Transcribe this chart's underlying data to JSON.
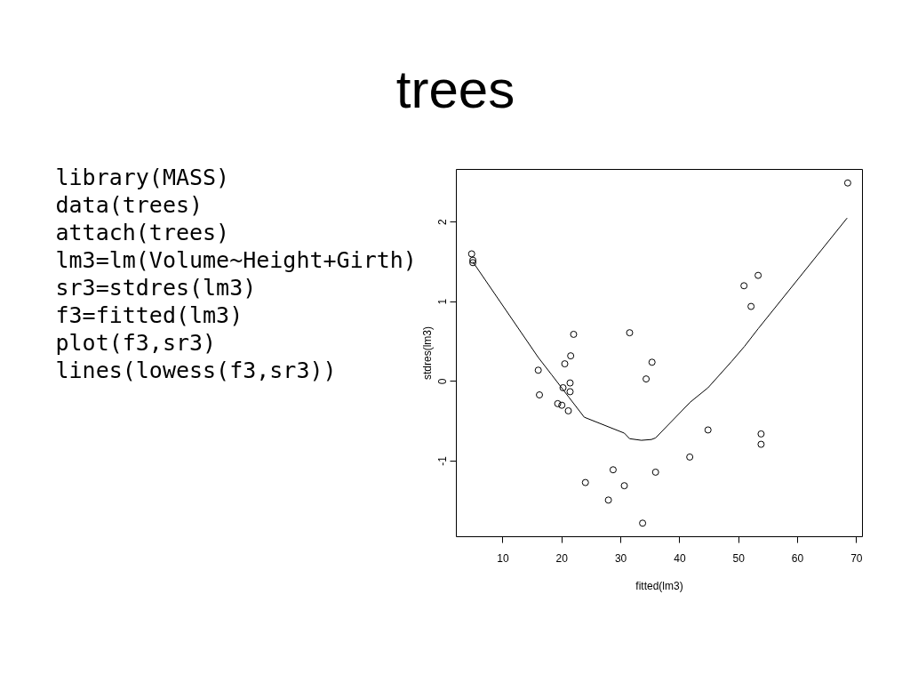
{
  "chart_data": {
    "type": "scatter",
    "title": "trees",
    "xlabel": "fitted(lm3)",
    "ylabel": "stdres(lm3)",
    "annotations": [
      "library(MASS)",
      "data(trees)",
      "attach(trees)",
      "lm3=lm(Volume~Height+Girth)",
      "sr3=stdres(lm3)",
      "f3=fitted(lm3)",
      "plot(f3,sr3)",
      "lines(lowess(f3,sr3))"
    ],
    "xlim": [
      2.1,
      71.0
    ],
    "ylim": [
      -1.95,
      2.66
    ],
    "xticks": [
      10,
      20,
      30,
      40,
      50,
      60,
      70
    ],
    "yticks": [
      -1,
      0,
      1,
      2
    ],
    "grid": false,
    "series": [
      {
        "color": "#000000",
        "marker": "circle",
        "x": [
          4.7,
          4.9,
          4.9,
          16.0,
          16.2,
          19.3,
          20.0,
          20.2,
          20.5,
          21.1,
          21.4,
          21.4,
          21.5,
          22.0,
          24.0,
          27.9,
          28.7,
          30.6,
          31.5,
          33.7,
          34.3,
          35.3,
          35.9,
          41.7,
          44.8,
          50.9,
          52.1,
          53.3,
          53.8,
          53.8,
          68.5
        ],
        "values": [
          1.6,
          1.52,
          1.49,
          0.14,
          -0.17,
          -0.28,
          -0.3,
          -0.08,
          0.22,
          -0.37,
          -0.02,
          -0.13,
          0.32,
          0.59,
          -1.27,
          -1.49,
          -1.11,
          -1.31,
          0.61,
          -1.78,
          0.03,
          0.24,
          -1.14,
          -0.95,
          -0.61,
          1.2,
          0.94,
          1.33,
          -0.66,
          -0.79,
          2.49
        ]
      },
      {
        "type": "line",
        "color": "#000000",
        "marker": "none",
        "line_style": "solid",
        "x": [
          4.9,
          16.0,
          18.3,
          21.2,
          23.8,
          30.6,
          31.5,
          33.5,
          35.2,
          35.9,
          41.8,
          44.8,
          48.8,
          51.0,
          53.3,
          68.4
        ],
        "values": [
          1.5,
          0.3,
          0.08,
          -0.2,
          -0.45,
          -0.65,
          -0.72,
          -0.74,
          -0.73,
          -0.71,
          -0.26,
          -0.08,
          0.25,
          0.44,
          0.66,
          2.05
        ]
      }
    ]
  }
}
